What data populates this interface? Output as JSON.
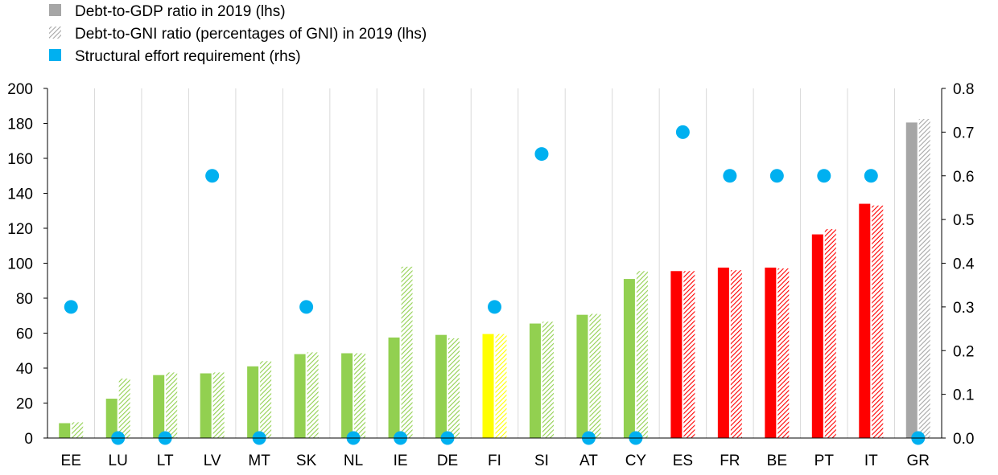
{
  "chart_data": {
    "type": "bar",
    "title": "",
    "xlabel": "",
    "ylabel": "",
    "categories": [
      "EE",
      "LU",
      "LT",
      "LV",
      "MT",
      "SK",
      "NL",
      "IE",
      "DE",
      "FI",
      "SI",
      "AT",
      "CY",
      "ES",
      "FR",
      "BE",
      "PT",
      "IT",
      "GR"
    ],
    "bar_colors": [
      "#92d050",
      "#92d050",
      "#92d050",
      "#92d050",
      "#92d050",
      "#92d050",
      "#92d050",
      "#92d050",
      "#92d050",
      "#ffff00",
      "#92d050",
      "#92d050",
      "#92d050",
      "#ff0000",
      "#ff0000",
      "#ff0000",
      "#ff0000",
      "#ff0000",
      "#a6a6a6"
    ],
    "series": [
      {
        "name": "Debt-to-GDP ratio in 2019 (lhs)",
        "axis": "left",
        "style": "solid",
        "values": [
          8.5,
          22.5,
          36,
          37,
          41,
          48,
          48.5,
          57.5,
          59,
          59.5,
          65.5,
          70.5,
          91,
          95.5,
          97.5,
          97.5,
          116.5,
          134,
          180.5
        ]
      },
      {
        "name": "Debt-to-GNI ratio (percentages of GNI) in 2019 (lhs)",
        "axis": "left",
        "style": "hatched",
        "values": [
          9,
          34,
          37.5,
          37.5,
          44,
          49,
          48.5,
          98,
          57,
          59.5,
          66.5,
          71,
          95.5,
          95.5,
          96,
          97,
          119.5,
          133,
          182.5
        ]
      },
      {
        "name": "Structural effort requirement (rhs)",
        "axis": "right",
        "style": "marker",
        "color": "#00b0f0",
        "values": [
          0.3,
          0,
          0,
          0.6,
          0,
          0.3,
          0,
          0,
          0,
          0.3,
          0.65,
          0,
          0,
          0.7,
          0.6,
          0.6,
          0.6,
          0.6,
          0
        ]
      }
    ],
    "left_axis": {
      "ylim": [
        0,
        200
      ],
      "ticks": [
        0,
        20,
        40,
        60,
        80,
        100,
        120,
        140,
        160,
        180,
        200
      ]
    },
    "right_axis": {
      "ylim": [
        0,
        0.8
      ],
      "ticks": [
        "0.0",
        "0.1",
        "0.2",
        "0.3",
        "0.4",
        "0.5",
        "0.6",
        "0.7",
        "0.8"
      ]
    },
    "grid": "vertical",
    "legend_position": "top-left",
    "legend_colors": {
      "gdp": "#a6a6a6",
      "gni": "#a6a6a6",
      "effort": "#00b0f0"
    }
  }
}
